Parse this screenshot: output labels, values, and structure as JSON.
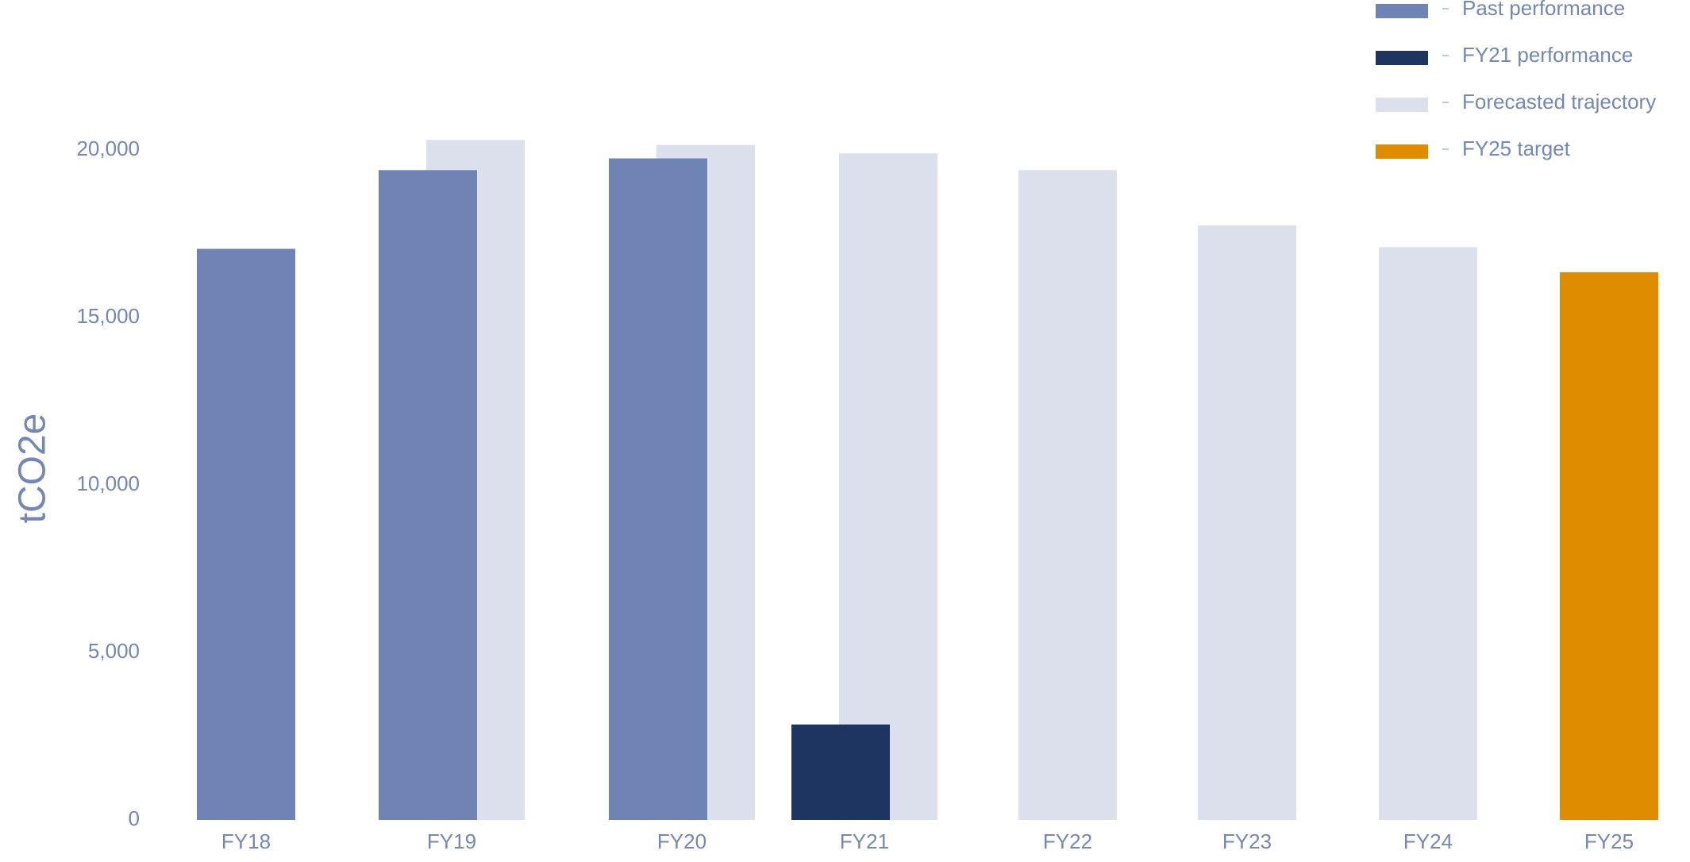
{
  "chart_data": {
    "type": "bar",
    "y_label": "tCO2e",
    "categories": [
      "FY18",
      "FY19",
      "FY20",
      "FY21",
      "FY22",
      "FY23",
      "FY24",
      "FY25"
    ],
    "series": [
      {
        "name": "Past performance",
        "color": "#6f84b4",
        "values": [
          17050,
          19400,
          19750,
          null,
          null,
          null,
          null,
          null
        ]
      },
      {
        "name": "FY21 performance",
        "color": "#1e3461",
        "values": [
          null,
          null,
          null,
          2850,
          null,
          null,
          null,
          null
        ]
      },
      {
        "name": "Forecasted trajectory",
        "color": "#dce0ec",
        "values": [
          null,
          20300,
          20150,
          19900,
          19400,
          17750,
          17100,
          null
        ]
      },
      {
        "name": "FY25 target",
        "color": "#e08c00",
        "values": [
          null,
          null,
          null,
          null,
          null,
          null,
          null,
          16350
        ]
      }
    ],
    "ylim": [
      0,
      20000
    ],
    "yticks": [
      0,
      {
        "value": 5000,
        "label": "5,000"
      },
      {
        "value": 10000,
        "label": "10,000"
      },
      {
        "value": 15000,
        "label": "15,000"
      },
      {
        "value": 20000,
        "label": "20,000"
      }
    ],
    "grid": false,
    "legend": "top-right"
  }
}
